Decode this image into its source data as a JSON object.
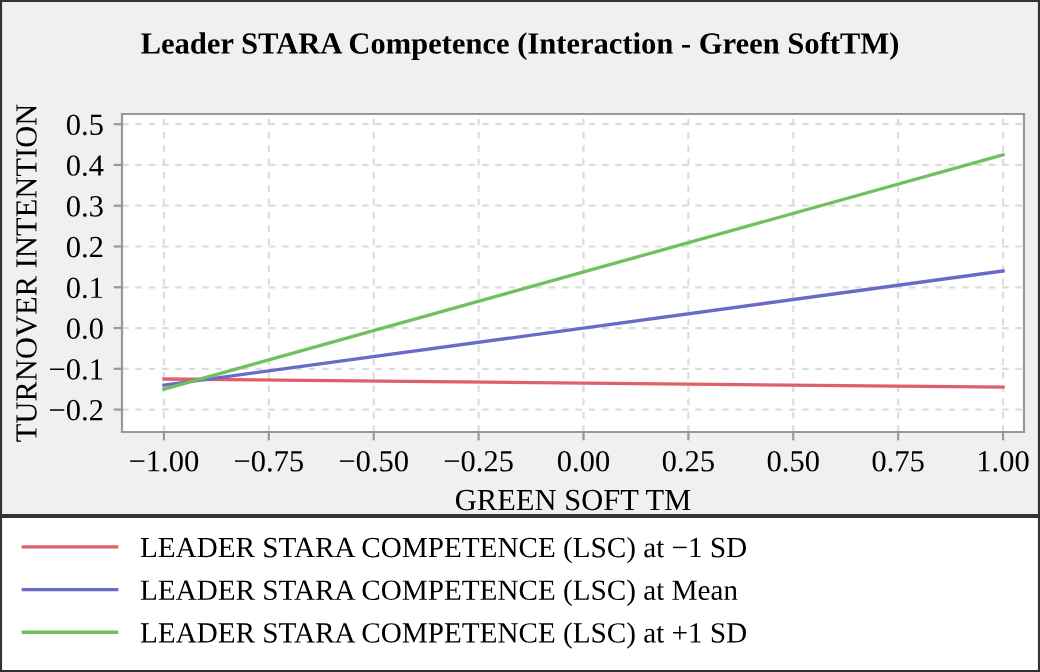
{
  "chart_data": {
    "type": "line",
    "title": "Leader STARA Competence (Interaction - Green SoftTM)",
    "xlabel": "GREEN SOFT TM",
    "ylabel": "TURNOVER INTENTION",
    "x": [
      -1,
      1
    ],
    "series": [
      {
        "name": "LEADER STARA COMPETENCE (LSC) at −1 SD",
        "color": "#e0606a",
        "values": [
          -0.125,
          -0.145
        ]
      },
      {
        "name": "LEADER STARA COMPETENCE (LSC) at Mean",
        "color": "#6a6ac8",
        "values": [
          -0.14,
          0.14
        ]
      },
      {
        "name": "LEADER STARA COMPETENCE (LSC) at +1 SD",
        "color": "#70c060",
        "values": [
          -0.15,
          0.425
        ]
      }
    ],
    "xlim": [
      -1.1,
      1.05
    ],
    "ylim": [
      -0.255,
      0.525
    ],
    "xticks": [
      {
        "value": -1,
        "label": "−1.00"
      },
      {
        "value": -0.75,
        "label": "−0.75"
      },
      {
        "value": -0.5,
        "label": "−0.50"
      },
      {
        "value": -0.25,
        "label": "−0.25"
      },
      {
        "value": 0,
        "label": "0.00"
      },
      {
        "value": 0.25,
        "label": "0.25"
      },
      {
        "value": 0.5,
        "label": "0.50"
      },
      {
        "value": 0.75,
        "label": "0.75"
      },
      {
        "value": 1,
        "label": "1.00"
      }
    ],
    "yticks": [
      {
        "value": -0.2,
        "label": "−0.2"
      },
      {
        "value": -0.1,
        "label": "−0.1"
      },
      {
        "value": 0,
        "label": "0.0"
      },
      {
        "value": 0.1,
        "label": "0.1"
      },
      {
        "value": 0.2,
        "label": "0.2"
      },
      {
        "value": 0.3,
        "label": "0.3"
      },
      {
        "value": 0.4,
        "label": "0.4"
      },
      {
        "value": 0.5,
        "label": "0.5"
      }
    ],
    "grid": true,
    "legend": "bottom",
    "line_style": "solid"
  }
}
